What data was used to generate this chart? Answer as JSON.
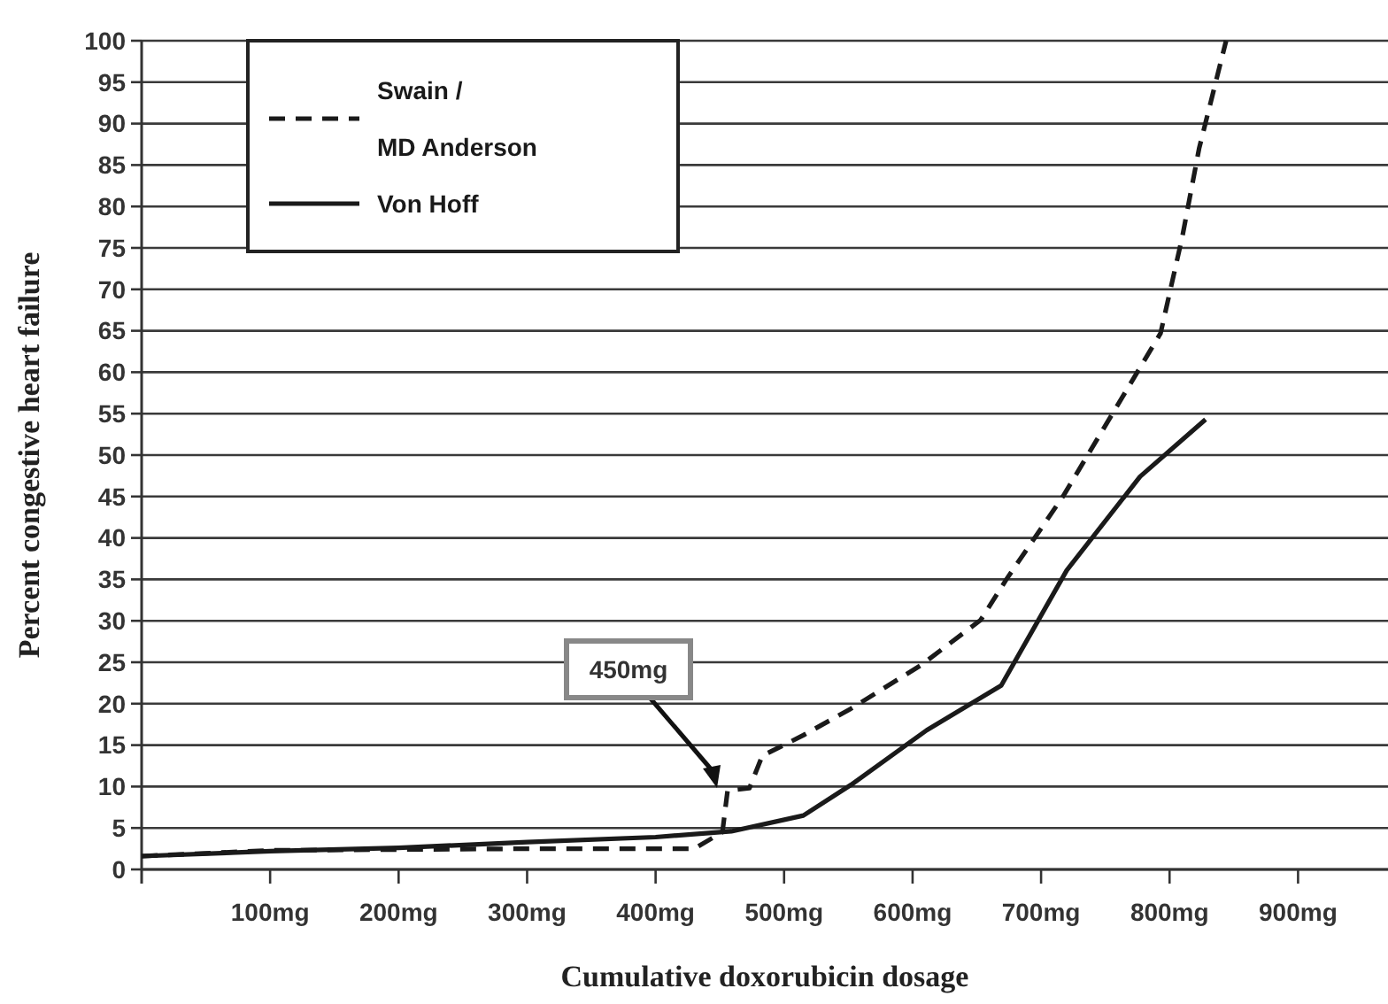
{
  "chart_data": {
    "type": "line",
    "xlabel": "Cumulative doxorubicin dosage",
    "ylabel": "Percent congestive heart failure",
    "xlim": [
      0,
      970
    ],
    "ylim": [
      0,
      100
    ],
    "xticks": [
      {
        "value": 100,
        "label": "100mg"
      },
      {
        "value": 200,
        "label": "200mg"
      },
      {
        "value": 300,
        "label": "300mg"
      },
      {
        "value": 400,
        "label": "400mg"
      },
      {
        "value": 500,
        "label": "500mg"
      },
      {
        "value": 600,
        "label": "600mg"
      },
      {
        "value": 700,
        "label": "700mg"
      },
      {
        "value": 800,
        "label": "800mg"
      },
      {
        "value": 900,
        "label": "900mg"
      }
    ],
    "yticks": [
      0,
      5,
      10,
      15,
      20,
      25,
      30,
      35,
      40,
      45,
      50,
      55,
      60,
      65,
      70,
      75,
      80,
      85,
      90,
      95,
      100
    ],
    "grid": "y",
    "legend": "top left",
    "marker": "none",
    "series": [
      {
        "name": "Swain / MD Anderson",
        "color": "#1a1a1a",
        "line_style": "dashed",
        "x": [
          0,
          100,
          200,
          300,
          430,
          452,
          456,
          473,
          483,
          515,
          552,
          607,
          653,
          673,
          717,
          793,
          810,
          823,
          844
        ],
        "values": [
          1.6,
          2.3,
          2.4,
          2.5,
          2.5,
          4.5,
          9.5,
          9.8,
          13.7,
          16.2,
          19.4,
          24.7,
          30.1,
          35,
          45,
          64.7,
          76.4,
          87,
          100
        ]
      },
      {
        "name": "Von Hoff",
        "color": "#1a1a1a",
        "line_style": "solid",
        "x": [
          0,
          100,
          200,
          300,
          400,
          459,
          515,
          552,
          611,
          669,
          720,
          777,
          828
        ],
        "values": [
          1.6,
          2.2,
          2.6,
          3.3,
          3.9,
          4.6,
          6.5,
          10.2,
          16.8,
          22.2,
          36.1,
          47.4,
          54.3
        ]
      }
    ],
    "annotations": [
      "450mg"
    ]
  }
}
